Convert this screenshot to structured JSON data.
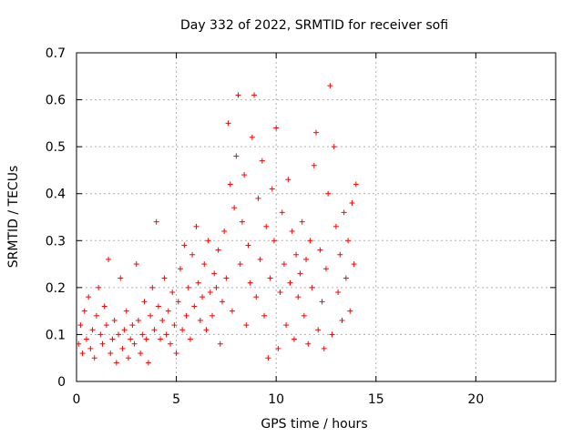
{
  "chart_data": {
    "type": "scatter",
    "title": "Day 332 of 2022, SRMTID for receiver sofi",
    "xlabel": "GPS time / hours",
    "ylabel": "SRMTID / TECUs",
    "xlim": [
      0,
      24
    ],
    "ylim": [
      0,
      0.7
    ],
    "xticks": [
      0,
      5,
      10,
      15,
      20
    ],
    "yticks": [
      0,
      0.1,
      0.2,
      0.3,
      0.4,
      0.5,
      0.6,
      0.7
    ],
    "grid": true,
    "marker": "+",
    "series": [
      {
        "name": "sofi",
        "color": "#ff0000",
        "points": [
          [
            0.1,
            0.08
          ],
          [
            0.2,
            0.12
          ],
          [
            0.3,
            0.06
          ],
          [
            0.4,
            0.15
          ],
          [
            0.5,
            0.09
          ],
          [
            0.6,
            0.18
          ],
          [
            0.7,
            0.07
          ],
          [
            0.8,
            0.11
          ],
          [
            0.9,
            0.05
          ],
          [
            1.0,
            0.14
          ],
          [
            1.1,
            0.2
          ],
          [
            1.2,
            0.1
          ],
          [
            1.3,
            0.08
          ],
          [
            1.4,
            0.16
          ],
          [
            1.5,
            0.12
          ],
          [
            1.6,
            0.26
          ],
          [
            1.7,
            0.06
          ],
          [
            1.8,
            0.09
          ],
          [
            1.9,
            0.13
          ],
          [
            2.0,
            0.04
          ],
          [
            2.1,
            0.1
          ],
          [
            2.2,
            0.22
          ],
          [
            2.3,
            0.07
          ],
          [
            2.4,
            0.11
          ],
          [
            2.5,
            0.15
          ],
          [
            2.6,
            0.05
          ],
          [
            2.7,
            0.09
          ],
          [
            2.8,
            0.12
          ],
          [
            2.9,
            0.08
          ],
          [
            3.0,
            0.25
          ],
          [
            3.1,
            0.13
          ],
          [
            3.2,
            0.06
          ],
          [
            3.3,
            0.1
          ],
          [
            3.4,
            0.17
          ],
          [
            3.5,
            0.09
          ],
          [
            3.6,
            0.04
          ],
          [
            3.7,
            0.14
          ],
          [
            3.8,
            0.2
          ],
          [
            3.9,
            0.11
          ],
          [
            4.0,
            0.34
          ],
          [
            4.1,
            0.16
          ],
          [
            4.2,
            0.09
          ],
          [
            4.3,
            0.13
          ],
          [
            4.4,
            0.22
          ],
          [
            4.5,
            0.1
          ],
          [
            4.6,
            0.15
          ],
          [
            4.7,
            0.08
          ],
          [
            4.8,
            0.19
          ],
          [
            4.9,
            0.12
          ],
          [
            5.0,
            0.06
          ],
          [
            5.1,
            0.17
          ],
          [
            5.2,
            0.24
          ],
          [
            5.3,
            0.11
          ],
          [
            5.4,
            0.29
          ],
          [
            5.5,
            0.14
          ],
          [
            5.6,
            0.2
          ],
          [
            5.7,
            0.09
          ],
          [
            5.8,
            0.27
          ],
          [
            5.9,
            0.16
          ],
          [
            6.0,
            0.33
          ],
          [
            6.1,
            0.21
          ],
          [
            6.2,
            0.13
          ],
          [
            6.3,
            0.18
          ],
          [
            6.4,
            0.25
          ],
          [
            6.5,
            0.11
          ],
          [
            6.6,
            0.3
          ],
          [
            6.7,
            0.19
          ],
          [
            6.8,
            0.14
          ],
          [
            6.9,
            0.23
          ],
          [
            7.0,
            0.2
          ],
          [
            7.1,
            0.28
          ],
          [
            7.2,
            0.08
          ],
          [
            7.3,
            0.17
          ],
          [
            7.4,
            0.32
          ],
          [
            7.5,
            0.22
          ],
          [
            7.6,
            0.55
          ],
          [
            7.7,
            0.42
          ],
          [
            7.8,
            0.15
          ],
          [
            7.9,
            0.37
          ],
          [
            8.0,
            0.48
          ],
          [
            8.1,
            0.61
          ],
          [
            8.2,
            0.25
          ],
          [
            8.3,
            0.34
          ],
          [
            8.4,
            0.44
          ],
          [
            8.5,
            0.12
          ],
          [
            8.6,
            0.29
          ],
          [
            8.7,
            0.21
          ],
          [
            8.8,
            0.52
          ],
          [
            8.9,
            0.61
          ],
          [
            9.0,
            0.18
          ],
          [
            9.1,
            0.39
          ],
          [
            9.2,
            0.26
          ],
          [
            9.3,
            0.47
          ],
          [
            9.4,
            0.14
          ],
          [
            9.5,
            0.33
          ],
          [
            9.6,
            0.05
          ],
          [
            9.7,
            0.22
          ],
          [
            9.8,
            0.41
          ],
          [
            9.9,
            0.3
          ],
          [
            10.0,
            0.54
          ],
          [
            10.1,
            0.07
          ],
          [
            10.2,
            0.19
          ],
          [
            10.3,
            0.36
          ],
          [
            10.4,
            0.25
          ],
          [
            10.5,
            0.12
          ],
          [
            10.6,
            0.43
          ],
          [
            10.7,
            0.21
          ],
          [
            10.8,
            0.32
          ],
          [
            10.9,
            0.09
          ],
          [
            11.0,
            0.27
          ],
          [
            11.1,
            0.18
          ],
          [
            11.2,
            0.23
          ],
          [
            11.3,
            0.34
          ],
          [
            11.4,
            0.14
          ],
          [
            11.5,
            0.26
          ],
          [
            11.6,
            0.08
          ],
          [
            11.7,
            0.3
          ],
          [
            11.8,
            0.2
          ],
          [
            11.9,
            0.46
          ],
          [
            12.0,
            0.53
          ],
          [
            12.1,
            0.11
          ],
          [
            12.2,
            0.28
          ],
          [
            12.3,
            0.17
          ],
          [
            12.4,
            0.07
          ],
          [
            12.5,
            0.24
          ],
          [
            12.6,
            0.4
          ],
          [
            12.7,
            0.63
          ],
          [
            12.8,
            0.1
          ],
          [
            12.9,
            0.5
          ],
          [
            13.0,
            0.33
          ],
          [
            13.1,
            0.19
          ],
          [
            13.2,
            0.27
          ],
          [
            13.3,
            0.13
          ],
          [
            13.4,
            0.36
          ],
          [
            13.5,
            0.22
          ],
          [
            13.6,
            0.3
          ],
          [
            13.7,
            0.15
          ],
          [
            13.8,
            0.38
          ],
          [
            13.9,
            0.25
          ],
          [
            14.0,
            0.42
          ]
        ]
      }
    ]
  }
}
